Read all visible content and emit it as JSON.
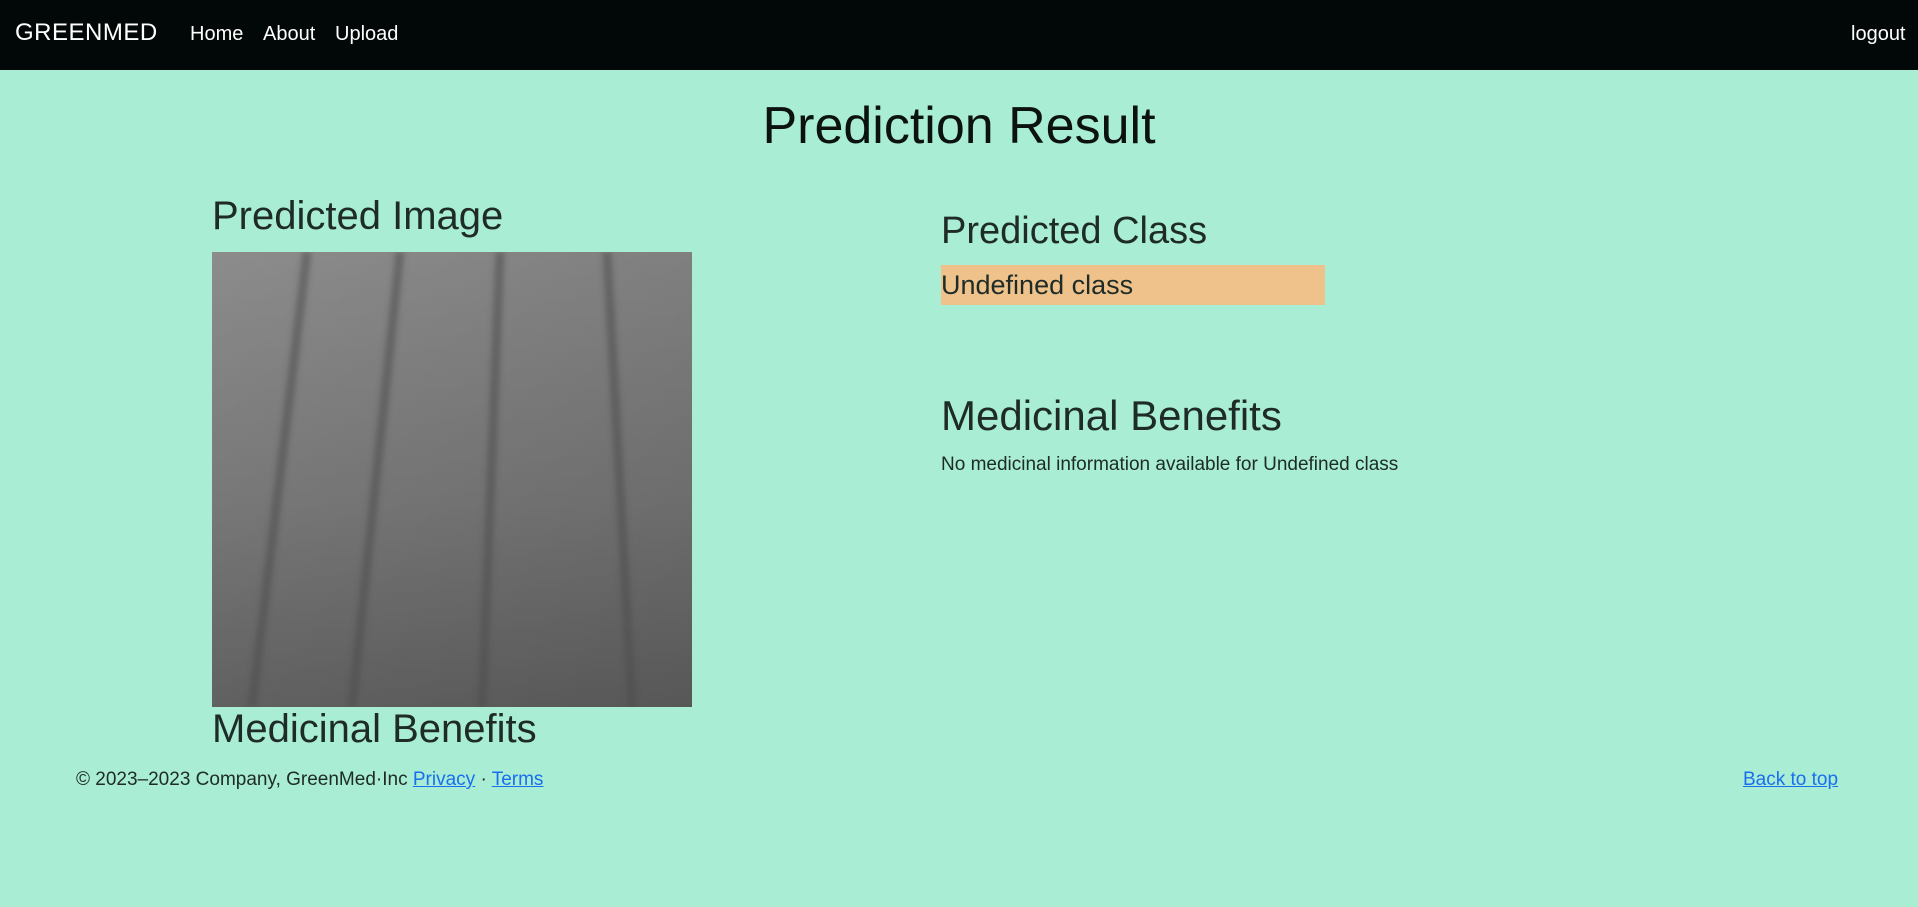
{
  "nav": {
    "brand": "GREENMED",
    "links": [
      "Home",
      "About",
      "Upload"
    ],
    "logout": "logout"
  },
  "page": {
    "title": "Prediction Result"
  },
  "left": {
    "image_heading": "Predicted Image",
    "benefits_heading": "Medicinal Benefits"
  },
  "right": {
    "class_heading": "Predicted Class",
    "class_value": "Undefined class",
    "class_badge_color": "#efc28b",
    "benefits_heading": "Medicinal Benefits",
    "benefits_text": "No medicinal information available for Undefined class"
  },
  "footer": {
    "copyright": "© 2023–2023 Company, GreenMed·Inc",
    "privacy": "Privacy",
    "separator": "·",
    "terms": "Terms",
    "back_to_top": "Back to top"
  },
  "colors": {
    "background": "#a8edd4",
    "navbar": "#020807",
    "link": "#1a6ef0"
  }
}
